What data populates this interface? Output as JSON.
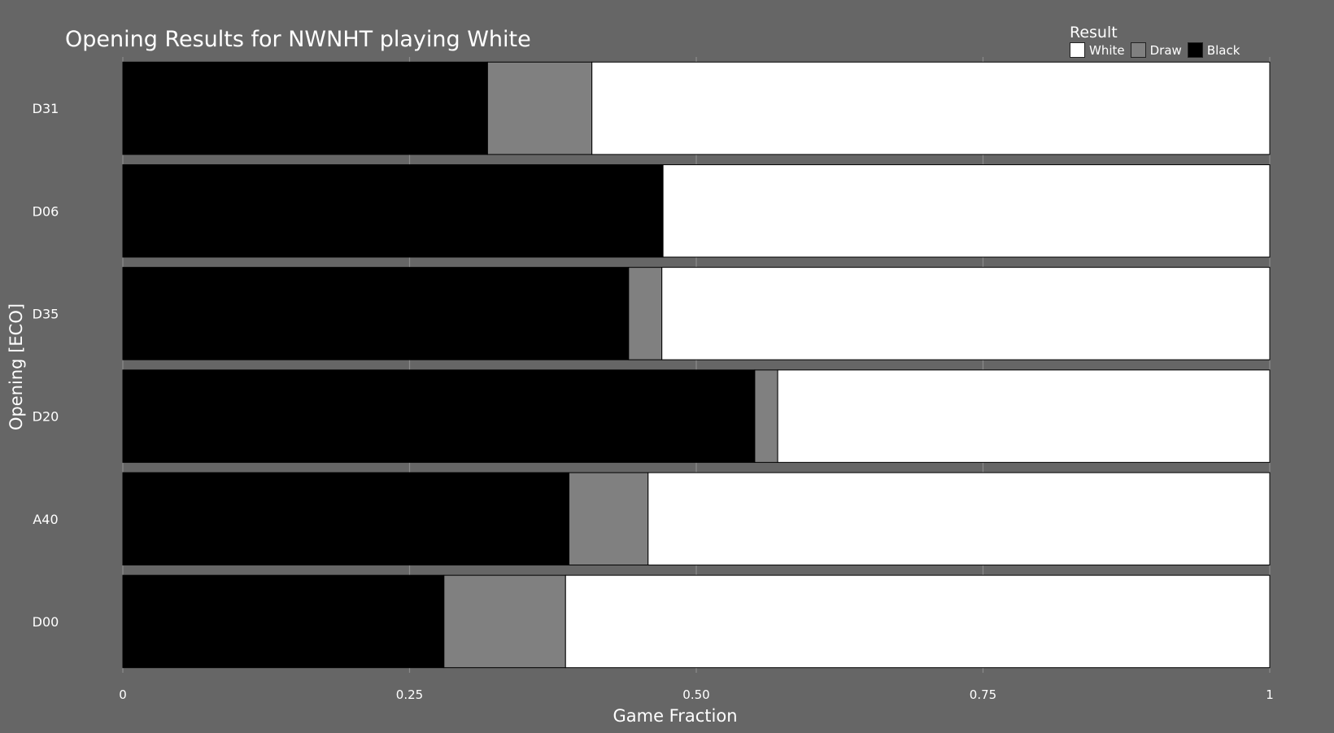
{
  "chart_data": {
    "type": "bar",
    "orientation": "horizontal",
    "stacked": true,
    "title": "Opening Results for NWNHT playing White",
    "xlabel": "Game Fraction",
    "ylabel": "Opening [ECO]",
    "xlim": [
      0,
      1
    ],
    "x_ticks": [
      0,
      0.25,
      0.5,
      0.75,
      1
    ],
    "x_tick_labels": [
      "0",
      "0.25",
      "0.50",
      "0.75",
      "1"
    ],
    "grid": true,
    "legend": {
      "title": "Result",
      "position": "top-right",
      "entries": [
        {
          "label": "White",
          "color": "#ffffff"
        },
        {
          "label": "Draw",
          "color": "#808080"
        },
        {
          "label": "Black",
          "color": "#000000"
        }
      ]
    },
    "categories": [
      "D31",
      "D06",
      "D35",
      "D20",
      "A40",
      "D00"
    ],
    "series": [
      {
        "name": "Black",
        "color": "#000000",
        "values": [
          0.318,
          0.471,
          0.441,
          0.551,
          0.389,
          0.28
        ]
      },
      {
        "name": "Draw",
        "color": "#808080",
        "values": [
          0.091,
          0.0,
          0.029,
          0.02,
          0.069,
          0.106
        ]
      },
      {
        "name": "White",
        "color": "#ffffff",
        "values": [
          0.591,
          0.529,
          0.53,
          0.429,
          0.542,
          0.614
        ]
      }
    ]
  }
}
